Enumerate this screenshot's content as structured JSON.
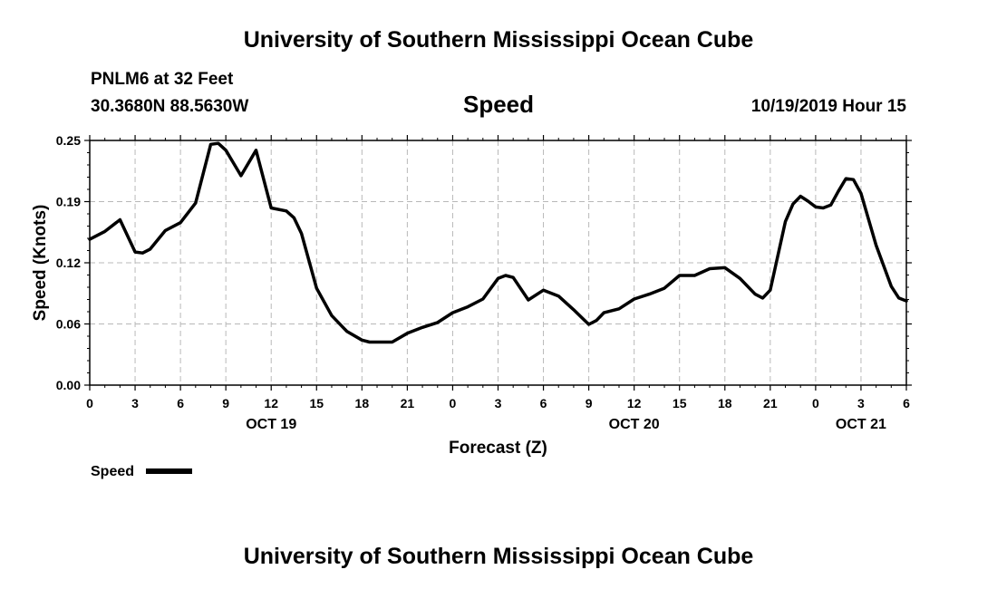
{
  "header": {
    "title": "University of Southern Mississippi Ocean Cube",
    "station": "PNLM6 at 32 Feet",
    "coordinates": "30.3680N 88.5630W",
    "parameter": "Speed",
    "datetime": "10/19/2019 Hour 15"
  },
  "footer": {
    "title": "University of Southern Mississippi Ocean Cube"
  },
  "chart_data": {
    "type": "line",
    "xlabel": "Forecast (Z)",
    "ylabel": "Speed (Knots)",
    "ylim": [
      0,
      0.25
    ],
    "yticks": [
      "0.00",
      "0.06",
      "0.12",
      "0.19",
      "0.25"
    ],
    "xticks": [
      "0",
      "3",
      "6",
      "9",
      "12",
      "15",
      "18",
      "21",
      "0",
      "3",
      "6",
      "9",
      "12",
      "15",
      "18",
      "21",
      "0",
      "3",
      "6"
    ],
    "date_labels": [
      {
        "text": "OCT 19",
        "hour": 12
      },
      {
        "text": "OCT 20",
        "hour": 36
      },
      {
        "text": "OCT 21",
        "hour": 51
      }
    ],
    "grid": true,
    "legend": {
      "label": "Speed",
      "placement": "bottom-left"
    },
    "line_color": "#000000",
    "series": [
      {
        "name": "Speed",
        "x": [
          0,
          1,
          2,
          3,
          3.5,
          4,
          5,
          6,
          7,
          8,
          8.5,
          9,
          10,
          11,
          12,
          13,
          13.5,
          14,
          15,
          16,
          17,
          18,
          18.5,
          19,
          20,
          21,
          22,
          23,
          24,
          25,
          26,
          27,
          27.5,
          28,
          29,
          30,
          31,
          32,
          33,
          33.5,
          34,
          35,
          36,
          37,
          38,
          39,
          40,
          41,
          42,
          43,
          44,
          44.5,
          45,
          46,
          46.5,
          47,
          47.5,
          48,
          48.5,
          49,
          49.5,
          50,
          50.5,
          51,
          52,
          53,
          53.5,
          54
        ],
        "values": [
          0.149,
          0.157,
          0.169,
          0.136,
          0.135,
          0.139,
          0.158,
          0.166,
          0.186,
          0.246,
          0.247,
          0.24,
          0.214,
          0.24,
          0.181,
          0.178,
          0.171,
          0.155,
          0.099,
          0.071,
          0.055,
          0.046,
          0.044,
          0.044,
          0.044,
          0.053,
          0.059,
          0.064,
          0.074,
          0.08,
          0.088,
          0.109,
          0.112,
          0.11,
          0.087,
          0.097,
          0.091,
          0.077,
          0.062,
          0.066,
          0.074,
          0.078,
          0.088,
          0.093,
          0.099,
          0.112,
          0.112,
          0.119,
          0.12,
          0.109,
          0.093,
          0.089,
          0.097,
          0.167,
          0.185,
          0.193,
          0.188,
          0.182,
          0.181,
          0.184,
          0.198,
          0.211,
          0.21,
          0.196,
          0.143,
          0.101,
          0.089,
          0.086
        ]
      }
    ]
  }
}
